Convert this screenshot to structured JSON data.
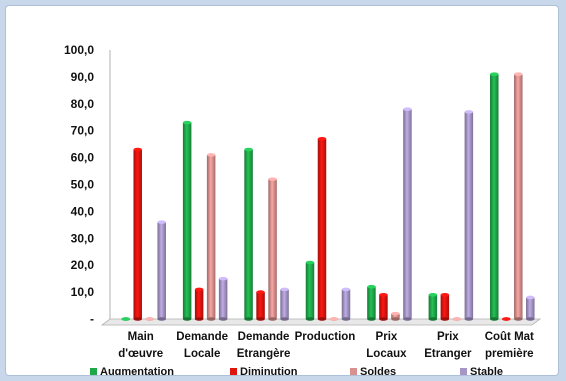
{
  "chart_data": {
    "type": "bar",
    "title": "",
    "xlabel": "",
    "ylabel": "",
    "ylim": [
      0,
      100
    ],
    "yticks": [
      "-",
      "10,0",
      "20,0",
      "30,0",
      "40,0",
      "50,0",
      "60,0",
      "70,0",
      "80,0",
      "90,0",
      "100,0"
    ],
    "categories": [
      [
        "Main",
        "d'œuvre"
      ],
      [
        "Demande",
        "Locale"
      ],
      [
        "Demande",
        "Etrangère"
      ],
      [
        "Production"
      ],
      [
        "Prix",
        "Locaux"
      ],
      [
        "Prix",
        "Etranger"
      ],
      [
        "Coût Mat",
        "première"
      ]
    ],
    "series": [
      {
        "name": "Augmentation",
        "color": "#1fa84a",
        "values": [
          0,
          73,
          63,
          21,
          12,
          9,
          91
        ]
      },
      {
        "name": "Diminution",
        "color": "#e0140f",
        "values": [
          63,
          11,
          10,
          67,
          9,
          9,
          0
        ]
      },
      {
        "name": "Soldes",
        "color": "#d9908e",
        "values": [
          0,
          61,
          52,
          0,
          2,
          0,
          91
        ]
      },
      {
        "name": "Stable",
        "color": "#a696c8",
        "values": [
          36,
          15,
          11,
          11,
          78,
          77,
          8
        ]
      }
    ],
    "grid": false,
    "legend_position": "bottom"
  }
}
